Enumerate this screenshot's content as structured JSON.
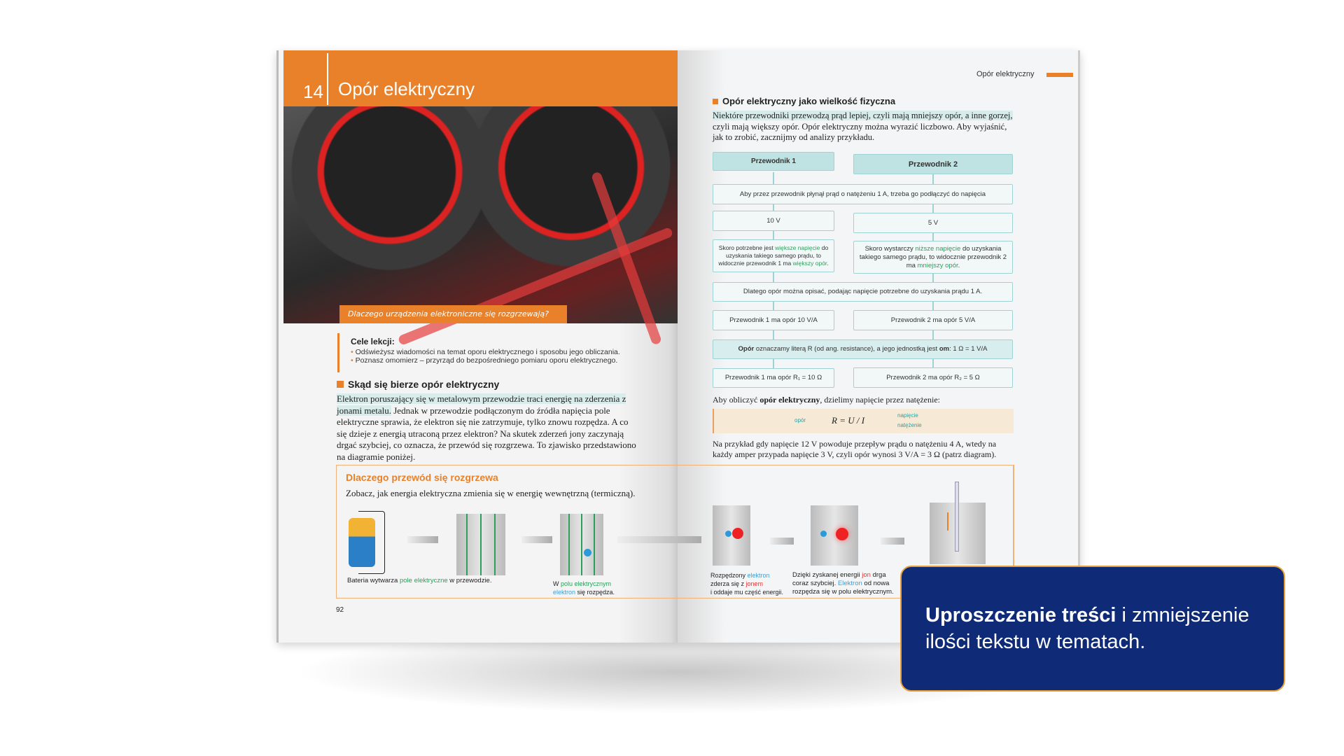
{
  "left_page": {
    "chapter_number": "14",
    "chapter_title": "Opór elektryczny",
    "photo_caption": "Dlaczego urządzenia elektroniczne się rozgrzewają?",
    "goals_title": "Cele lekcji:",
    "goals": [
      "Odświeżysz wiadomości na temat oporu elektrycznego i sposobu jego obliczania.",
      "Poznasz omomierz – przyrząd do bezpośredniego pomiaru oporu elektrycznego."
    ],
    "section_title": "Skąd się bierze opór elektryczny",
    "para_highlight": "Elektron poruszający się w metalowym przewodzie traci energię na zderzenia z jonami metalu.",
    "para_rest": " Jednak w przewodzie podłączonym do źródła napięcia pole elektryczne sprawia, że elektron się nie zatrzymuje, tylko znowu rozpędza. A co się dzieje z energią utraconą przez elektron? Na skutek zderzeń jony zaczynają drgać szybciej, co oznacza, że przewód się rozgrzewa. To zjawisko przedstawiono na diagramie poniżej.",
    "page_number": "92"
  },
  "diagram": {
    "title": "Dlaczego przewód się rozgrzewa",
    "intro": "Zobacz, jak energia elektryczna zmienia się w energię wewnętrzną (termiczną).",
    "cap1": [
      "Bateria wytwarza ",
      "pole elektryczne",
      " w przewodzie."
    ],
    "cap2": [
      "W ",
      "polu elektrycznym",
      "elektron",
      " się rozpędza."
    ],
    "cap3": [
      "Rozpędzony ",
      "elektron",
      "zderza się z ",
      "jonem",
      "i oddaje mu część energii."
    ],
    "cap4": [
      "Dzięki zyskanej energii ",
      "jon",
      " drga coraz szybciej. ",
      "Elektron",
      " od nowa rozpędza się w polu elektrycznym."
    ]
  },
  "right_page": {
    "running_head": "Opór elektryczny",
    "section_title": "Opór elektryczny jako wielkość fizyczna",
    "para_highlight": "Niektóre przewodniki przewodzą prąd lepiej, czyli mają mniejszy opór, a inne gorzej,",
    "para_rest": " czyli mają większy opór. Opór elektryczny można wyrazić liczbowo. Aby wyjaśnić, jak to zrobić, zacznijmy od analizy przykładu.",
    "flow": {
      "h1": "Przewodnik 1",
      "h2": "Przewodnik 2",
      "row1": "Aby przez przewodnik płynął prąd o natężeniu 1 A, trzeba go podłączyć do napięcia",
      "v1": "10 V",
      "v2": "5 V",
      "s1": [
        "Skoro potrzebne jest ",
        "większe napięcie",
        " do uzyskania takiego samego prądu, to widocznie przewodnik 1 ma ",
        "większy opór",
        "."
      ],
      "s2": [
        "Skoro wystarczy ",
        "niższe napięcie",
        " do uzyskania takiego samego prądu, to widocznie przewodnik 2 ma ",
        "mniejszy opór",
        "."
      ],
      "row2": "Dlatego opór można opisać, podając napięcie potrzebne do uzyskania prądu 1 A.",
      "o1": "Przewodnik 1 ma opór 10 V/A",
      "o2": "Przewodnik 2 ma opór 5 V/A",
      "row3_bold": "Opór",
      "row3": " oznaczamy literą R (od ang. resistance), a jego jednostką jest ",
      "row3_om": "om",
      "row3_end": ": 1 Ω = 1 V/A",
      "r1": "Przewodnik 1 ma opór R₁ = 10 Ω",
      "r2": "Przewodnik 2 ma opór R₂ = 5 Ω"
    },
    "calc_pre": "Aby obliczyć ",
    "calc_bold": "opór elektryczny",
    "calc_post": ", dzielimy napięcie przez natężenie:",
    "formula": {
      "label_r": "opór",
      "expr": "R = U / I",
      "label_u": "napięcie",
      "label_i": "natężenie"
    },
    "example": "Na przykład gdy napięcie 12 V powoduje przepływ prądu o natężeniu 4 A, wtedy na każdy amper przypada napięcie 3 V, czyli opór wynosi 3 V/A = 3 Ω (patrz diagram)."
  },
  "callout": {
    "bold": "Uproszczenie treści",
    "rest": " i zmniejszenie ilości tekstu w tematach."
  },
  "colors": {
    "accent": "#e8812a",
    "callout_bg": "#0f2b78",
    "teal": "#9fd3d3"
  }
}
